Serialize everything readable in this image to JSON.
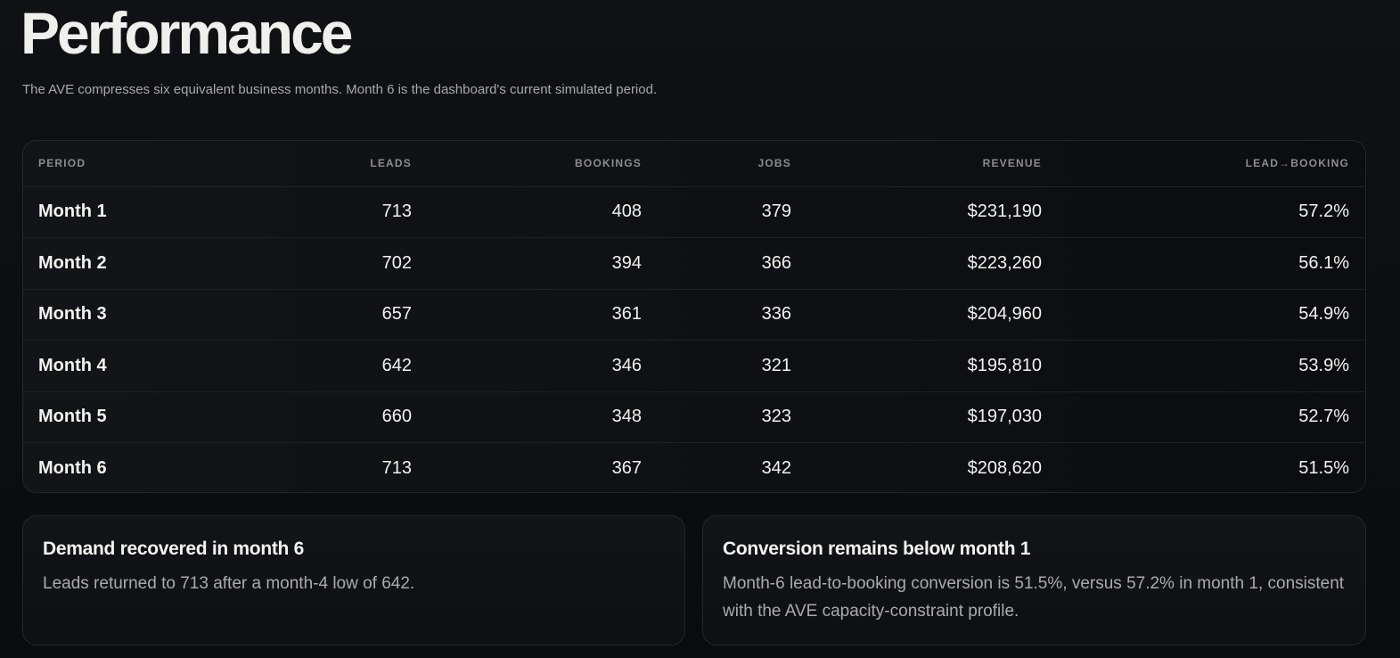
{
  "header": {
    "title": "Performance",
    "subtitle": "The AVE compresses six equivalent business months. Month 6 is the dashboard's current simulated period."
  },
  "table": {
    "columns": [
      "PERIOD",
      "LEADS",
      "BOOKINGS",
      "JOBS",
      "REVENUE",
      "LEAD→BOOKING"
    ],
    "rows": [
      {
        "period": "Month 1",
        "leads": "713",
        "bookings": "408",
        "jobs": "379",
        "revenue": "$231,190",
        "conversion": "57.2%"
      },
      {
        "period": "Month 2",
        "leads": "702",
        "bookings": "394",
        "jobs": "366",
        "revenue": "$223,260",
        "conversion": "56.1%"
      },
      {
        "period": "Month 3",
        "leads": "657",
        "bookings": "361",
        "jobs": "336",
        "revenue": "$204,960",
        "conversion": "54.9%"
      },
      {
        "period": "Month 4",
        "leads": "642",
        "bookings": "346",
        "jobs": "321",
        "revenue": "$195,810",
        "conversion": "53.9%"
      },
      {
        "period": "Month 5",
        "leads": "660",
        "bookings": "348",
        "jobs": "323",
        "revenue": "$197,030",
        "conversion": "52.7%"
      },
      {
        "period": "Month 6",
        "leads": "713",
        "bookings": "367",
        "jobs": "342",
        "revenue": "$208,620",
        "conversion": "51.5%"
      }
    ]
  },
  "insights": [
    {
      "title": "Demand recovered in month 6",
      "body": "Leads returned to 713 after a month-4 low of 642."
    },
    {
      "title": "Conversion remains below month 1",
      "body": "Month-6 lead-to-booking conversion is 51.5%, versus 57.2% in month 1, consistent with the AVE capacity-constraint profile."
    }
  ]
}
